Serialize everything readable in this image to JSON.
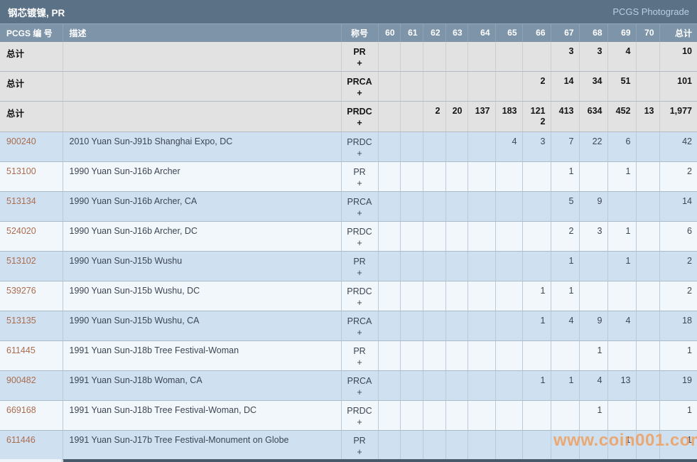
{
  "page": {
    "title": "钢芯镀镍, PR",
    "photograde_label": "PCGS Photograde",
    "watermark": "www.coin001.com"
  },
  "table": {
    "number_header": "PCGS 编 号",
    "description_header": "描述",
    "designation_header": "称号",
    "grade_headers": [
      "60",
      "61",
      "62",
      "63",
      "64",
      "65",
      "66",
      "67",
      "68",
      "69",
      "70"
    ],
    "total_header": "总计",
    "plus_symbol": "+",
    "rows": [
      {
        "shade": "total",
        "link": false,
        "number": "总计",
        "description": "",
        "designation": "PR",
        "grades": [
          "",
          "",
          "",
          "",
          "",
          "",
          "",
          "3",
          "3",
          "4",
          ""
        ],
        "total": "10"
      },
      {
        "shade": "total",
        "link": false,
        "number": "总计",
        "description": "",
        "designation": "PRCA",
        "grades": [
          "",
          "",
          "",
          "",
          "",
          "",
          "2",
          "14",
          "34",
          "51",
          ""
        ],
        "total": "101"
      },
      {
        "shade": "total",
        "link": false,
        "number": "总计",
        "description": "",
        "designation": "PRDC",
        "tall": true,
        "grades": [
          "",
          "",
          "2",
          "20",
          "137",
          "183",
          "121",
          "413",
          "634",
          "452",
          "13"
        ],
        "grades_plus": [
          "",
          "",
          "",
          "",
          "",
          "",
          "2",
          "",
          "",
          "",
          ""
        ],
        "total": "1,977"
      },
      {
        "shade": "blue",
        "link": true,
        "number": "900240",
        "description": "2010 Yuan Sun-J91b Shanghai Expo, DC",
        "designation": "PRDC",
        "grades": [
          "",
          "",
          "",
          "",
          "",
          "4",
          "3",
          "7",
          "22",
          "6",
          ""
        ],
        "total": "42"
      },
      {
        "shade": "light",
        "link": true,
        "number": "513100",
        "description": "1990 Yuan Sun-J16b Archer",
        "designation": "PR",
        "grades": [
          "",
          "",
          "",
          "",
          "",
          "",
          "",
          "1",
          "",
          "1",
          ""
        ],
        "total": "2"
      },
      {
        "shade": "blue",
        "link": true,
        "number": "513134",
        "description": "1990 Yuan Sun-J16b Archer, CA",
        "designation": "PRCA",
        "grades": [
          "",
          "",
          "",
          "",
          "",
          "",
          "",
          "5",
          "9",
          "",
          ""
        ],
        "total": "14"
      },
      {
        "shade": "light",
        "link": true,
        "number": "524020",
        "description": "1990 Yuan Sun-J16b Archer, DC",
        "designation": "PRDC",
        "grades": [
          "",
          "",
          "",
          "",
          "",
          "",
          "",
          "2",
          "3",
          "1",
          ""
        ],
        "total": "6"
      },
      {
        "shade": "blue",
        "link": true,
        "number": "513102",
        "description": "1990 Yuan Sun-J15b Wushu",
        "designation": "PR",
        "grades": [
          "",
          "",
          "",
          "",
          "",
          "",
          "",
          "1",
          "",
          "1",
          ""
        ],
        "total": "2"
      },
      {
        "shade": "light",
        "link": true,
        "number": "539276",
        "description": "1990 Yuan Sun-J15b Wushu, DC",
        "designation": "PRDC",
        "grades": [
          "",
          "",
          "",
          "",
          "",
          "",
          "1",
          "1",
          "",
          "",
          ""
        ],
        "total": "2"
      },
      {
        "shade": "blue",
        "link": true,
        "number": "513135",
        "description": "1990 Yuan Sun-J15b Wushu, CA",
        "designation": "PRCA",
        "grades": [
          "",
          "",
          "",
          "",
          "",
          "",
          "1",
          "4",
          "9",
          "4",
          ""
        ],
        "total": "18"
      },
      {
        "shade": "light",
        "link": true,
        "number": "611445",
        "description": "1991 Yuan Sun-J18b Tree Festival-Woman",
        "designation": "PR",
        "grades": [
          "",
          "",
          "",
          "",
          "",
          "",
          "",
          "",
          "1",
          "",
          ""
        ],
        "total": "1"
      },
      {
        "shade": "blue",
        "link": true,
        "number": "900482",
        "description": "1991 Yuan Sun-J18b Woman, CA",
        "designation": "PRCA",
        "grades": [
          "",
          "",
          "",
          "",
          "",
          "",
          "1",
          "1",
          "4",
          "13",
          ""
        ],
        "total": "19"
      },
      {
        "shade": "light",
        "link": true,
        "number": "669168",
        "description": "1991 Yuan Sun-J18b Tree Festival-Woman, DC",
        "designation": "PRDC",
        "grades": [
          "",
          "",
          "",
          "",
          "",
          "",
          "",
          "",
          "1",
          "",
          ""
        ],
        "total": "1"
      },
      {
        "shade": "blue",
        "link": true,
        "number": "611446",
        "description": "1991 Yuan Sun-J17b Tree Festival-Monument on Globe",
        "designation": "PR",
        "cut": true,
        "grades": [
          "",
          "",
          "",
          "",
          "",
          "",
          "",
          "",
          "",
          "1",
          ""
        ],
        "total": "1"
      }
    ]
  }
}
